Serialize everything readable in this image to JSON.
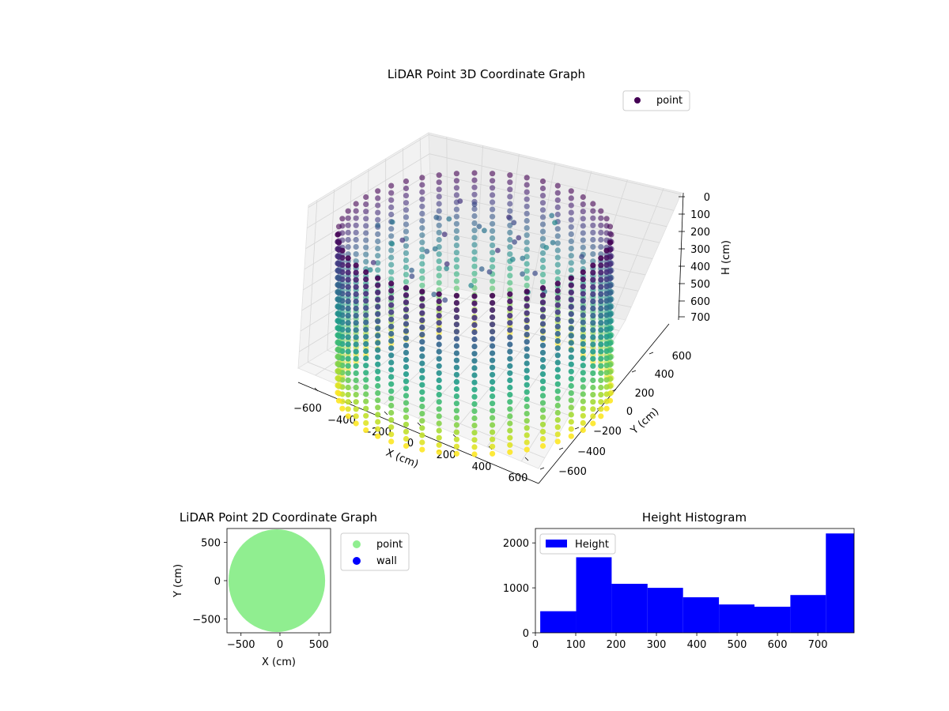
{
  "chart_data": [
    {
      "type": "scatter",
      "title": "LiDAR Point 3D Coordinate Graph",
      "xlabel": "X (cm)",
      "ylabel": "Y (cm)",
      "zlabel": "H (cm)",
      "projection": "3d",
      "colormap": "viridis (by height)",
      "xlim": [
        -650,
        650
      ],
      "ylim": [
        -650,
        650
      ],
      "zlim": [
        790,
        0
      ],
      "x_ticks": [
        "−600",
        "−400",
        "−200",
        "0",
        "200",
        "400",
        "600"
      ],
      "y_ticks": [
        "−600",
        "−400",
        "−200",
        "0",
        "200",
        "400",
        "600"
      ],
      "z_ticks": [
        "0",
        "100",
        "200",
        "300",
        "400",
        "500",
        "600",
        "700"
      ],
      "legend": {
        "placement": "top-right",
        "entries": [
          {
            "label": "point",
            "color": "#440154"
          }
        ]
      },
      "series": [
        {
          "name": "point",
          "shape": "cylindrical wall",
          "radius_cm": 550,
          "height_cm": [
            0,
            790
          ],
          "vertical_scan_lines": 48
        }
      ]
    },
    {
      "type": "scatter",
      "title": "LiDAR Point 2D Coordinate Graph",
      "xlabel": "X (cm)",
      "ylabel": "Y (cm)",
      "xlim": [
        -680,
        650
      ],
      "ylim": [
        -680,
        680
      ],
      "x_ticks": [
        "−500",
        "0",
        "500"
      ],
      "y_ticks": [
        "−500",
        "0",
        "500"
      ],
      "legend": {
        "placement": "outside-right",
        "entries": [
          {
            "label": "point",
            "color": "#90ee90"
          },
          {
            "label": "wall",
            "color": "#0000ff"
          }
        ]
      },
      "series": [
        {
          "name": "point",
          "color": "#90ee90",
          "shape": "filled disc",
          "radius_cm": 620
        },
        {
          "name": "wall",
          "color": "#0000ff",
          "points": []
        }
      ]
    },
    {
      "type": "bar",
      "title": "Height Histogram",
      "xlim": [
        0,
        790
      ],
      "ylim": [
        0,
        2320
      ],
      "x_ticks": [
        "0",
        "100",
        "200",
        "300",
        "400",
        "500",
        "600",
        "700"
      ],
      "y_ticks": [
        "0",
        "1000",
        "2000"
      ],
      "legend": {
        "placement": "top-left",
        "entries": [
          {
            "label": "Height",
            "color": "#0000ff"
          }
        ]
      },
      "series": [
        {
          "name": "Height",
          "color": "#0000ff",
          "bin_edges": [
            12,
            101,
            189,
            278,
            366,
            455,
            543,
            632,
            720,
            809
          ],
          "values": [
            480,
            1680,
            1090,
            1000,
            790,
            630,
            580,
            840,
            2210
          ]
        }
      ]
    }
  ]
}
